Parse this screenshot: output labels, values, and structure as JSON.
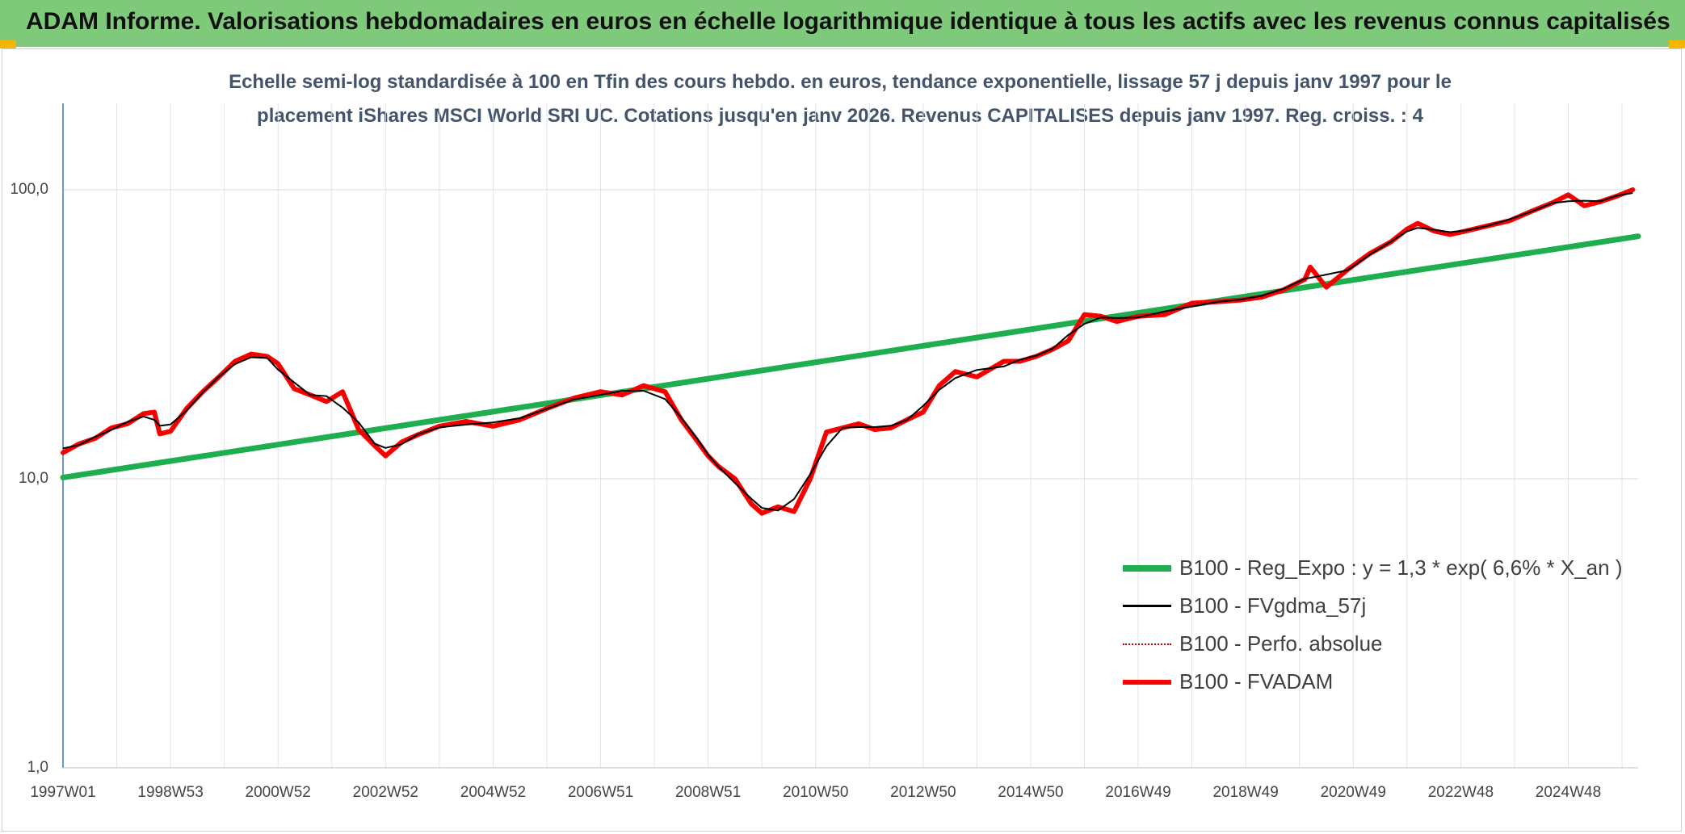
{
  "banner": {
    "title": "ADAM Informe. Valorisations hebdomadaires en euros en échelle logarithmique identique à tous les actifs avec les revenus connus capitalisés",
    "color": "#7ec97a"
  },
  "chart_data": {
    "type": "line",
    "title_line1": "Echelle semi-log standardisée à 100 en Tfin des cours hebdo. en euros, tendance exponentielle, lissage 57 j depuis janv 1997 pour le",
    "title_line2": "placement iShares MSCI World SRI UC. Cotations jusqu'en janv 2026. Revenus CAPITALISES depuis janv 1997. Reg. croiss. : 4",
    "y_scale": "log",
    "ylim": [
      1,
      200
    ],
    "y_ticks": [
      {
        "value": 1,
        "label": "1,0"
      },
      {
        "value": 10,
        "label": "10,0"
      },
      {
        "value": 100,
        "label": "100,0"
      }
    ],
    "xlim": [
      1997.0,
      2026.3
    ],
    "x_ticks": [
      {
        "value": 1997.0,
        "label": "1997W01"
      },
      {
        "value": 1999.0,
        "label": "1998W53"
      },
      {
        "value": 2001.0,
        "label": "2000W52"
      },
      {
        "value": 2003.0,
        "label": "2002W52"
      },
      {
        "value": 2005.0,
        "label": "2004W52"
      },
      {
        "value": 2007.0,
        "label": "2006W51"
      },
      {
        "value": 2009.0,
        "label": "2008W51"
      },
      {
        "value": 2011.0,
        "label": "2010W50"
      },
      {
        "value": 2013.0,
        "label": "2012W50"
      },
      {
        "value": 2015.0,
        "label": "2014W50"
      },
      {
        "value": 2017.0,
        "label": "2016W49"
      },
      {
        "value": 2019.0,
        "label": "2018W49"
      },
      {
        "value": 2021.0,
        "label": "2020W49"
      },
      {
        "value": 2023.0,
        "label": "2022W48"
      },
      {
        "value": 2025.0,
        "label": "2024W48"
      }
    ],
    "grid": true,
    "legend_position": "bottom-right",
    "x": [
      1997.0,
      1997.3,
      1997.6,
      1997.9,
      1998.2,
      1998.5,
      1998.7,
      1998.8,
      1999.0,
      1999.3,
      1999.6,
      1999.9,
      2000.2,
      2000.5,
      2000.8,
      2001.0,
      2001.3,
      2001.6,
      2001.9,
      2002.2,
      2002.5,
      2002.8,
      2003.0,
      2003.3,
      2003.6,
      2004.0,
      2004.5,
      2005.0,
      2005.5,
      2006.0,
      2006.5,
      2007.0,
      2007.4,
      2007.8,
      2008.2,
      2008.5,
      2008.8,
      2009.0,
      2009.2,
      2009.5,
      2009.8,
      2010.0,
      2010.3,
      2010.6,
      2010.9,
      2011.2,
      2011.5,
      2011.8,
      2012.1,
      2012.4,
      2012.7,
      2013.0,
      2013.3,
      2013.6,
      2014.0,
      2014.5,
      2014.8,
      2015.1,
      2015.4,
      2015.7,
      2016.0,
      2016.3,
      2016.6,
      2017.0,
      2017.5,
      2018.0,
      2018.5,
      2018.9,
      2019.3,
      2019.7,
      2020.1,
      2020.2,
      2020.5,
      2020.9,
      2021.3,
      2021.7,
      2022.0,
      2022.2,
      2022.5,
      2022.8,
      2023.1,
      2023.5,
      2023.9,
      2024.3,
      2024.7,
      2025.0,
      2025.3,
      2025.6,
      2025.9,
      2026.2
    ],
    "series": [
      {
        "name": "B100 - Reg_Expo : y = 1,3 * exp( 6,6% *  X_an )",
        "color": "#1fae4f",
        "kind": "trend",
        "start": [
          1997.0,
          10.1
        ],
        "end": [
          2026.3,
          69
        ]
      },
      {
        "name": "B100 - FVgdma_57j",
        "color": "#000000",
        "kind": "smooth"
      },
      {
        "name": "B100 - Perfo. absolue",
        "color": "#c00000",
        "kind": "dotted"
      },
      {
        "name": "B100 - FVADAM",
        "color": "#ff0000",
        "kind": "main",
        "values": [
          12.3,
          13.2,
          13.8,
          15.0,
          15.5,
          16.8,
          17.0,
          14.3,
          14.6,
          17.5,
          20.0,
          22.5,
          25.5,
          27.0,
          26.5,
          25.0,
          20.5,
          19.5,
          18.5,
          20.0,
          14.8,
          13.0,
          12.0,
          13.4,
          14.2,
          15.2,
          15.8,
          15.2,
          16.0,
          17.5,
          19.0,
          20.0,
          19.5,
          21.0,
          20.0,
          16.0,
          13.5,
          12.0,
          11.0,
          10.0,
          8.2,
          7.6,
          8.0,
          7.7,
          10.0,
          14.5,
          15.0,
          15.5,
          14.8,
          15.0,
          16.0,
          17.0,
          21.0,
          23.5,
          22.5,
          25.5,
          25.5,
          26.5,
          28.0,
          30.0,
          37.0,
          36.5,
          35.0,
          36.5,
          37.0,
          40.5,
          41.0,
          41.5,
          42.5,
          45.0,
          49.0,
          54.0,
          46.0,
          53.0,
          60.0,
          66.0,
          73.0,
          76.5,
          72.0,
          70.0,
          72.0,
          75.0,
          78.0,
          84.0,
          90.0,
          96.0,
          88.0,
          91.0,
          95.0,
          100.0
        ]
      }
    ]
  }
}
